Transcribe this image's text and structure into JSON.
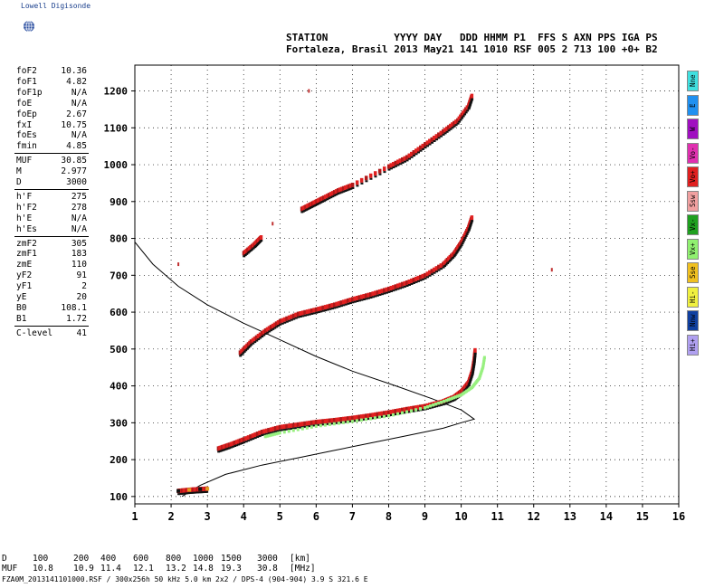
{
  "brand": {
    "logo_text": "Lowell Digisonde"
  },
  "header": {
    "line1": "STATION           YYYY DAY   DDD HHMM P1  FFS S AXN PPS IGA PS",
    "line2": "Fortaleza, Brasil 2013 May21 141 1010 RSF 005 2 713 100 +0+ B2"
  },
  "params": {
    "group1": [
      {
        "key": "foF2",
        "val": "10.36"
      },
      {
        "key": "foF1",
        "val": "4.82"
      },
      {
        "key": "foF1p",
        "val": "N/A"
      },
      {
        "key": "foE",
        "val": "N/A"
      },
      {
        "key": "foEp",
        "val": "2.67"
      },
      {
        "key": "fxI",
        "val": "10.75"
      },
      {
        "key": "foEs",
        "val": "N/A"
      },
      {
        "key": "fmin",
        "val": "4.85"
      }
    ],
    "group2": [
      {
        "key": "MUF",
        "val": "30.85"
      },
      {
        "key": "M",
        "val": "2.977"
      },
      {
        "key": "D",
        "val": "3000"
      }
    ],
    "group3": [
      {
        "key": "h'F",
        "val": "275"
      },
      {
        "key": "h'F2",
        "val": "278"
      },
      {
        "key": "h'E",
        "val": "N/A"
      },
      {
        "key": "h'Es",
        "val": "N/A"
      }
    ],
    "group4": [
      {
        "key": "zmF2",
        "val": "305"
      },
      {
        "key": "zmF1",
        "val": "183"
      },
      {
        "key": "zmE",
        "val": "110"
      },
      {
        "key": "yF2",
        "val": "91"
      },
      {
        "key": "yF1",
        "val": "2"
      },
      {
        "key": "yE",
        "val": "20"
      },
      {
        "key": "B0",
        "val": "108.1"
      },
      {
        "key": "B1",
        "val": "1.72"
      }
    ],
    "group5": [
      {
        "key": "C-level",
        "val": "41"
      }
    ]
  },
  "legend": [
    {
      "label": "Nne",
      "color": "#40e0e0"
    },
    {
      "label": "E",
      "color": "#2090f0"
    },
    {
      "label": "W",
      "color": "#a010c0"
    },
    {
      "label": "Vo-",
      "color": "#e030b0"
    },
    {
      "label": "Vo+",
      "color": "#e02020"
    },
    {
      "label": "Ssw",
      "color": "#f0a0a0"
    },
    {
      "label": "Vx-",
      "color": "#20a020"
    },
    {
      "label": "Vx+",
      "color": "#90f070"
    },
    {
      "label": "Sse",
      "color": "#f0c020"
    },
    {
      "label": "Hi-",
      "color": "#f0f040"
    },
    {
      "label": "Nnw",
      "color": "#1040a0"
    },
    {
      "label": "Hi+",
      "color": "#b0a0f0"
    }
  ],
  "chart_data": {
    "type": "scatter",
    "xlim": [
      1,
      16
    ],
    "ylim": [
      80,
      1270
    ],
    "xticks": [
      "1",
      "2",
      "3",
      "4",
      "5",
      "6",
      "7",
      "8",
      "9",
      "10",
      "11",
      "12",
      "13",
      "14",
      "15",
      "16"
    ],
    "yticks": [
      "100",
      "200",
      "300",
      "400",
      "500",
      "600",
      "700",
      "800",
      "900",
      "1000",
      "1100",
      "1200"
    ],
    "grid": true,
    "ionogram_traces": [
      {
        "name": "E-trace",
        "points": [
          [
            2.2,
            115
          ],
          [
            2.5,
            118
          ],
          [
            2.8,
            120
          ],
          [
            3.0,
            121
          ]
        ]
      },
      {
        "name": "F-trace O",
        "points": [
          [
            3.3,
            230
          ],
          [
            3.6,
            240
          ],
          [
            4.0,
            255
          ],
          [
            4.5,
            275
          ],
          [
            5.0,
            288
          ],
          [
            5.5,
            295
          ],
          [
            6.0,
            302
          ],
          [
            6.5,
            307
          ],
          [
            7.0,
            313
          ],
          [
            7.5,
            320
          ],
          [
            8.0,
            328
          ],
          [
            8.5,
            337
          ],
          [
            9.0,
            345
          ],
          [
            9.5,
            358
          ],
          [
            9.8,
            370
          ],
          [
            10.0,
            385
          ],
          [
            10.2,
            410
          ],
          [
            10.3,
            440
          ],
          [
            10.35,
            470
          ],
          [
            10.38,
            500
          ]
        ]
      },
      {
        "name": "F-trace X",
        "points": [
          [
            4.6,
            262
          ],
          [
            5.0,
            272
          ],
          [
            6.0,
            290
          ],
          [
            7.0,
            303
          ],
          [
            8.0,
            318
          ],
          [
            9.0,
            340
          ],
          [
            9.6,
            360
          ],
          [
            10.0,
            375
          ],
          [
            10.3,
            395
          ],
          [
            10.5,
            420
          ],
          [
            10.6,
            450
          ],
          [
            10.65,
            480
          ]
        ]
      },
      {
        "name": "2F O",
        "points": [
          [
            3.9,
            490
          ],
          [
            4.2,
            520
          ],
          [
            4.6,
            550
          ],
          [
            5.0,
            575
          ],
          [
            5.5,
            595
          ],
          [
            6.0,
            607
          ],
          [
            6.5,
            620
          ],
          [
            7.0,
            635
          ],
          [
            7.5,
            648
          ],
          [
            8.0,
            663
          ],
          [
            8.5,
            680
          ],
          [
            9.0,
            700
          ],
          [
            9.5,
            730
          ],
          [
            9.8,
            760
          ],
          [
            10.0,
            790
          ],
          [
            10.2,
            830
          ],
          [
            10.3,
            860
          ]
        ]
      },
      {
        "name": "3F O",
        "points": [
          [
            5.6,
            880
          ],
          [
            5.9,
            895
          ],
          [
            6.2,
            910
          ],
          [
            6.6,
            930
          ],
          [
            7.0,
            945
          ],
          [
            8.0,
            995
          ],
          [
            8.5,
            1020
          ],
          [
            9.0,
            1055
          ],
          [
            9.5,
            1090
          ],
          [
            9.9,
            1120
          ],
          [
            10.2,
            1160
          ],
          [
            10.3,
            1190
          ]
        ]
      },
      {
        "name": "3F low",
        "points": [
          [
            4.0,
            760
          ],
          [
            4.3,
            785
          ],
          [
            4.5,
            805
          ]
        ]
      },
      {
        "name": "stray",
        "points": [
          [
            2.2,
            730
          ],
          [
            12.5,
            715
          ],
          [
            5.8,
            1200
          ],
          [
            4.8,
            840
          ]
        ]
      }
    ],
    "profile_curve": {
      "name": "electron density profile",
      "points": [
        [
          2.3,
          100
        ],
        [
          2.8,
          130
        ],
        [
          3.5,
          160
        ],
        [
          4.5,
          185
        ],
        [
          5.5,
          205
        ],
        [
          6.5,
          225
        ],
        [
          7.5,
          245
        ],
        [
          8.5,
          265
        ],
        [
          9.5,
          285
        ],
        [
          10.0,
          300
        ],
        [
          10.36,
          310
        ],
        [
          10.0,
          335
        ],
        [
          9.2,
          365
        ],
        [
          8.2,
          400
        ],
        [
          7.0,
          440
        ],
        [
          6.0,
          480
        ],
        [
          5.0,
          525
        ],
        [
          4.0,
          570
        ],
        [
          3.0,
          620
        ],
        [
          2.2,
          670
        ],
        [
          1.5,
          730
        ],
        [
          1.0,
          790
        ]
      ]
    }
  },
  "footer": {
    "d_label": "D",
    "muf_label": "MUF",
    "d_values": [
      "100",
      "200",
      "400",
      "600",
      "800",
      "1000",
      "1500",
      "3000",
      "[km]"
    ],
    "muf_values": [
      "10.8",
      "10.9",
      "11.4",
      "12.1",
      "13.2",
      "14.8",
      "19.3",
      "30.8",
      "[MHz]"
    ],
    "file_line": "FZA0M_2013141101000.RSF / 300x256h 50 kHz 5.0 km 2x2 / DPS-4 (904-904)  3.9 S 321.6 E"
  }
}
